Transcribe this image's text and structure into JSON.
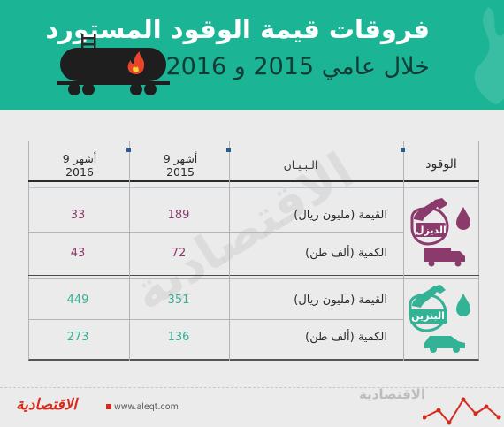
{
  "header": {
    "title": "فروقات قيمة الوقود المستورد",
    "subtitle": "خلال عامي 2015 و 2016"
  },
  "table": {
    "headers": {
      "fuel": "الوقود",
      "statement": "الـبـيـان",
      "col_2015": [
        "9 أشهر",
        "2015"
      ],
      "col_2016": [
        "9 أشهر",
        "2016"
      ]
    },
    "groups": [
      {
        "fuel": "الديزل",
        "icon": "diesel-pump-icon",
        "color": "#8a3b6b",
        "rows": [
          {
            "label": "القيمة (مليون ريال)",
            "v2015": "189",
            "v2016": "33"
          },
          {
            "label": "الكمية (ألف طن)",
            "v2015": "72",
            "v2016": "43"
          }
        ]
      },
      {
        "fuel": "البنزين",
        "icon": "gasoline-pump-icon",
        "color": "#34b296",
        "rows": [
          {
            "label": "القيمة (مليون ريال)",
            "v2015": "351",
            "v2016": "449"
          },
          {
            "label": "الكمية (ألف طن)",
            "v2015": "136",
            "v2016": "273"
          }
        ]
      }
    ]
  },
  "footer": {
    "brand": "الاقتصادية",
    "url": "www.aleqt.com",
    "watermark": "الاقتصادية"
  },
  "colors": {
    "header_bg": "#1bb596",
    "diesel": "#8a3b6b",
    "gasoline": "#34b296",
    "brand_red": "#d42b1e"
  }
}
